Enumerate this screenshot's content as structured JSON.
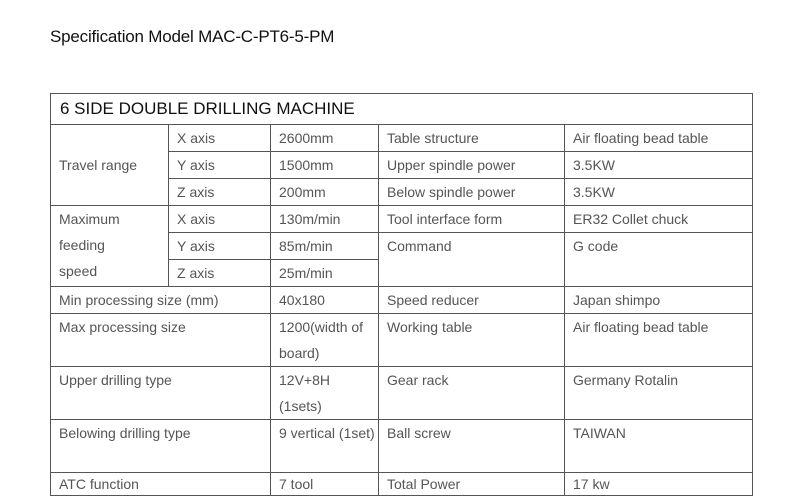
{
  "title": "Specification Model MAC-C-PT6-5-PM",
  "table": {
    "heading": "6 SIDE DOUBLE DRILLING MACHINE",
    "travel_range": {
      "label": "Travel range",
      "rows": [
        {
          "axis": "X axis",
          "value": "2600mm",
          "spec": "Table structure",
          "spec_value": "Air floating bead table"
        },
        {
          "axis": "Y axis",
          "value": "1500mm",
          "spec": "Upper spindle power",
          "spec_value": "3.5KW"
        },
        {
          "axis": "Z axis",
          "value": "200mm",
          "spec": "Below spindle power",
          "spec_value": "3.5KW"
        }
      ]
    },
    "feeding_speed": {
      "label_lines": [
        "Maximum",
        "feeding",
        "speed"
      ],
      "rows": [
        {
          "axis": "X axis",
          "value": "130m/min",
          "spec": "Tool interface form",
          "spec_value": "ER32 Collet chuck"
        },
        {
          "axis": "Y axis",
          "value": "85m/min",
          "spec": "Command",
          "spec_value": "G code"
        },
        {
          "axis": "Z axis",
          "value": "25m/min"
        }
      ]
    },
    "rows": [
      {
        "label": "Min processing size (mm)",
        "value": "40x180",
        "spec": "Speed reducer",
        "spec_value": "Japan shimpo"
      },
      {
        "label": "Max processing size",
        "value": "1200(width of board)",
        "spec": "Working table",
        "spec_value": "Air floating bead table"
      },
      {
        "label": "Upper drilling type",
        "value": "12V+8H (1sets)",
        "spec": "Gear rack",
        "spec_value": "Germany Rotalin"
      },
      {
        "label": "Belowing drilling type",
        "value": "9 vertical (1set)",
        "spec": "Ball screw",
        "spec_value": "TAIWAN"
      },
      {
        "label": "ATC function",
        "value": "7 tool",
        "spec": "Total Power",
        "spec_value": "17 kw"
      }
    ]
  }
}
